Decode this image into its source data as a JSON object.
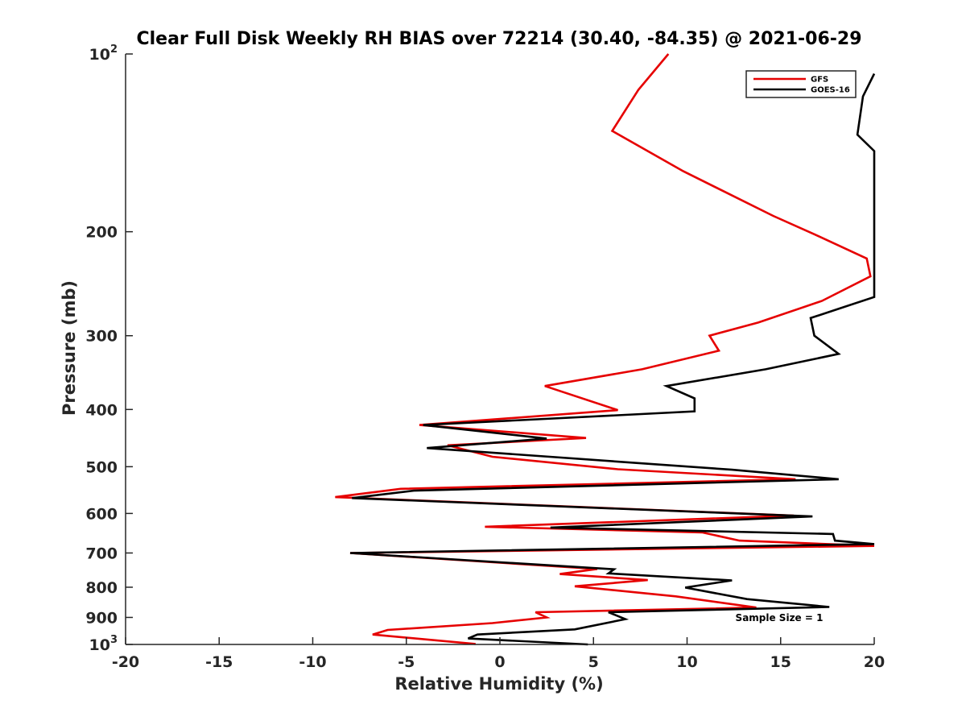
{
  "chart_data": {
    "type": "line",
    "title": "Clear Full Disk Weekly RH BIAS over 72214 (30.40, -84.35) @ 2021-06-29",
    "xlabel": "Relative Humidity (%)",
    "ylabel": "Pressure (mb)",
    "xlim": [
      -20,
      20
    ],
    "ylim": [
      100,
      1000
    ],
    "yscale": "log",
    "yreversed": true,
    "xticks": [
      "-20",
      "-15",
      "-10",
      "-5",
      "0",
      "5",
      "10",
      "15",
      "20"
    ],
    "xtick_values": [
      -20,
      -15,
      -10,
      -5,
      0,
      5,
      10,
      15,
      20
    ],
    "yticks": [
      {
        "value": 100,
        "base": "10",
        "exp": "2"
      },
      {
        "value": 200,
        "base": "200",
        "exp": ""
      },
      {
        "value": 300,
        "base": "300",
        "exp": ""
      },
      {
        "value": 400,
        "base": "400",
        "exp": ""
      },
      {
        "value": 500,
        "base": "500",
        "exp": ""
      },
      {
        "value": 600,
        "base": "600",
        "exp": ""
      },
      {
        "value": 700,
        "base": "700",
        "exp": ""
      },
      {
        "value": 800,
        "base": "800",
        "exp": ""
      },
      {
        "value": 900,
        "base": "900",
        "exp": ""
      },
      {
        "value": 1000,
        "base": "10",
        "exp": "3"
      }
    ],
    "legend_position": "top-right",
    "annotation": "Sample Size = 1",
    "series": [
      {
        "name": "GFS",
        "color": "#e60000",
        "points": [
          [
            9.0,
            100
          ],
          [
            7.4,
            115
          ],
          [
            6.0,
            135
          ],
          [
            9.8,
            158
          ],
          [
            14.6,
            188
          ],
          [
            16.8,
            202
          ],
          [
            19.6,
            222
          ],
          [
            19.8,
            238
          ],
          [
            17.2,
            262
          ],
          [
            13.8,
            285
          ],
          [
            11.2,
            300
          ],
          [
            11.7,
            318
          ],
          [
            7.6,
            342
          ],
          [
            2.4,
            365
          ],
          [
            6.3,
            401
          ],
          [
            -4.3,
            425
          ],
          [
            4.6,
            447
          ],
          [
            -2.8,
            460
          ],
          [
            -0.4,
            481
          ],
          [
            6.3,
            505
          ],
          [
            15.8,
            525
          ],
          [
            -5.3,
            545
          ],
          [
            -8.8,
            563
          ],
          [
            15.7,
            605
          ],
          [
            -0.8,
            632
          ],
          [
            10.8,
            646
          ],
          [
            12.8,
            667
          ],
          [
            20.0,
            681
          ],
          [
            -8.0,
            700
          ],
          [
            5.2,
            745
          ],
          [
            3.2,
            760
          ],
          [
            7.9,
            778
          ],
          [
            4.0,
            797
          ],
          [
            9.4,
            829
          ],
          [
            13.7,
            866
          ],
          [
            1.9,
            882
          ],
          [
            2.5,
            900
          ],
          [
            -0.4,
            920
          ],
          [
            -6.0,
            945
          ],
          [
            -6.8,
            962
          ],
          [
            -1.3,
            998
          ]
        ]
      },
      {
        "name": "GOES-16",
        "color": "#000000",
        "points": [
          [
            20.0,
            108
          ],
          [
            19.4,
            118
          ],
          [
            19.1,
            137
          ],
          [
            20.0,
            146
          ],
          [
            20.0,
            258
          ],
          [
            16.6,
            280
          ],
          [
            16.8,
            300
          ],
          [
            18.1,
            322
          ],
          [
            14.2,
            342
          ],
          [
            8.9,
            365
          ],
          [
            10.4,
            383
          ],
          [
            10.4,
            403
          ],
          [
            -4.1,
            425
          ],
          [
            2.5,
            448
          ],
          [
            -3.9,
            465
          ],
          [
            12.4,
            506
          ],
          [
            18.1,
            525
          ],
          [
            -4.6,
            549
          ],
          [
            -7.9,
            565
          ],
          [
            16.7,
            607
          ],
          [
            2.7,
            634
          ],
          [
            17.8,
            650
          ],
          [
            17.9,
            667
          ],
          [
            20.0,
            676
          ],
          [
            -8.0,
            700
          ],
          [
            6.1,
            746
          ],
          [
            5.8,
            758
          ],
          [
            12.4,
            779
          ],
          [
            9.9,
            801
          ],
          [
            13.2,
            838
          ],
          [
            17.6,
            864
          ],
          [
            5.8,
            882
          ],
          [
            6.7,
            906
          ],
          [
            4.0,
            943
          ],
          [
            -1.2,
            962
          ],
          [
            -1.7,
            977
          ],
          [
            4.7,
            1000
          ]
        ]
      }
    ]
  }
}
